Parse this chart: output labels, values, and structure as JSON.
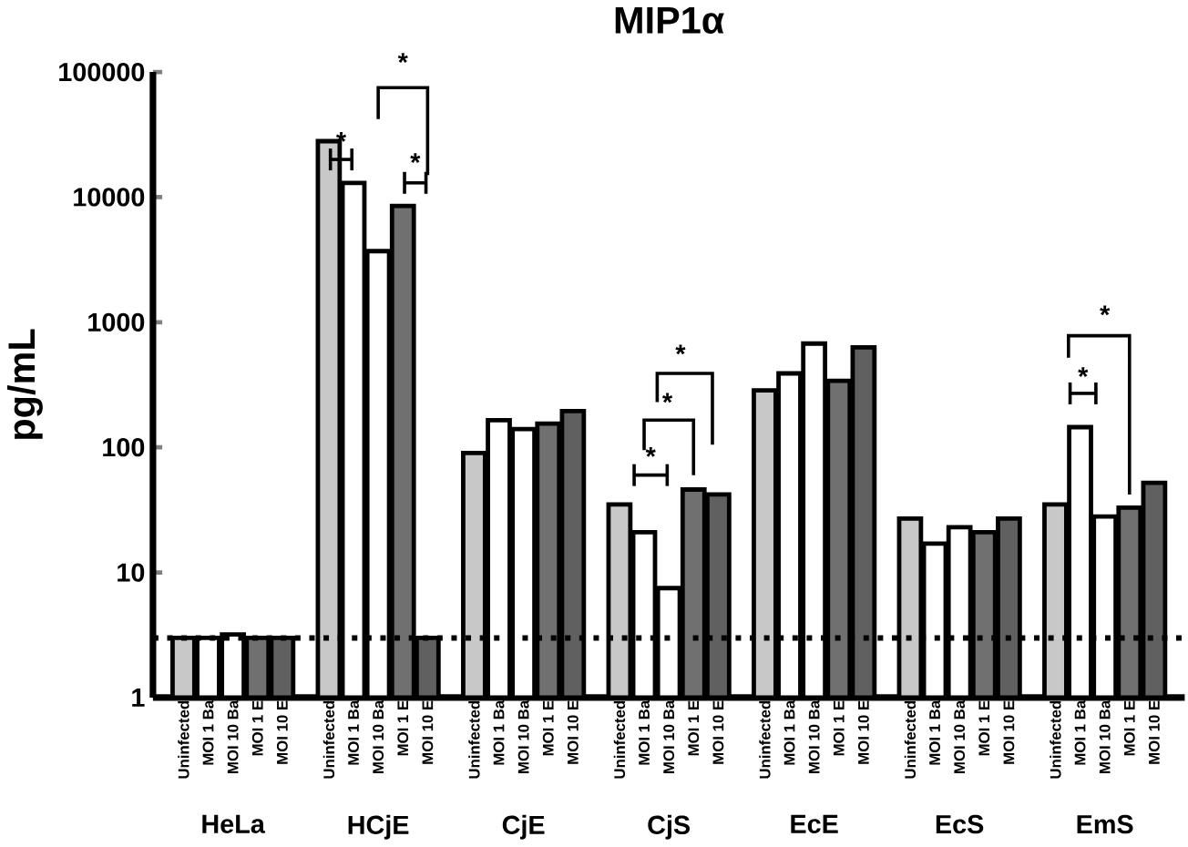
{
  "chart_data": {
    "type": "bar",
    "title": "MIP1α",
    "ylabel": "pg/mL",
    "categories": [
      "HeLa",
      "HCjE",
      "CjE",
      "CjS",
      "EcE",
      "EcS",
      "EmS"
    ],
    "series": [
      {
        "name": "Uninfected",
        "color": "#c8c8c8",
        "values": [
          3,
          28000,
          90,
          35,
          285,
          27,
          35
        ]
      },
      {
        "name": "MOI 1 Ba",
        "color": "#ffffff",
        "values": [
          3,
          13000,
          165,
          21,
          390,
          17,
          145
        ]
      },
      {
        "name": "MOI 10 Ba",
        "color": "#ffffff",
        "values": [
          3.2,
          3700,
          140,
          7.5,
          675,
          23,
          28
        ]
      },
      {
        "name": "MOI 1 E",
        "color": "#707070",
        "values": [
          3,
          8500,
          155,
          46,
          340,
          21,
          33
        ]
      },
      {
        "name": "MOI 10 E",
        "color": "#606060",
        "values": [
          3,
          3,
          195,
          42,
          630,
          27,
          52
        ]
      }
    ],
    "log": "y",
    "ylim": [
      1,
      100000
    ],
    "yticks": [
      1,
      10,
      100,
      1000,
      10000,
      100000
    ],
    "ref_lines": [
      {
        "axis": "y",
        "value": 3,
        "line_style": "dotted",
        "color": "#000000"
      }
    ],
    "annotations": [
      "*",
      "*",
      "*",
      "*",
      "*",
      "*",
      "*",
      "*"
    ]
  }
}
